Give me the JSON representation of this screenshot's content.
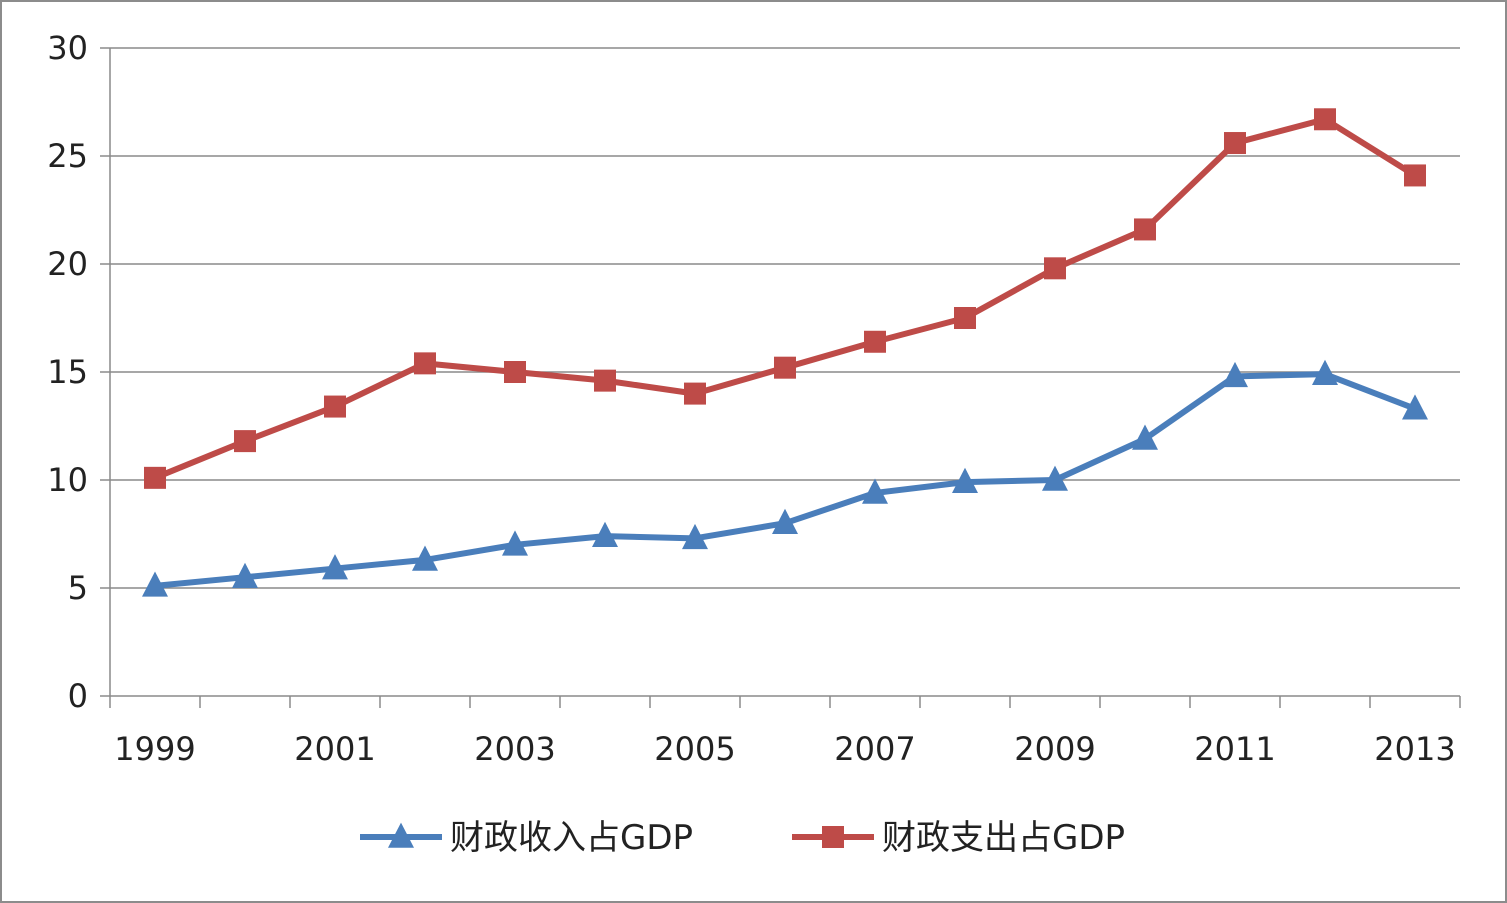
{
  "chart_data": {
    "type": "line",
    "title": "",
    "xlabel": "",
    "ylabel": "",
    "x": [
      1999,
      2000,
      2001,
      2002,
      2003,
      2004,
      2005,
      2006,
      2007,
      2008,
      2009,
      2010,
      2011,
      2012,
      2013
    ],
    "x_tick_labels": [
      "1999",
      "2001",
      "2003",
      "2005",
      "2007",
      "2009",
      "2011",
      "2013"
    ],
    "ylim": [
      0,
      30
    ],
    "y_ticks": [
      0,
      5,
      10,
      15,
      20,
      25,
      30
    ],
    "grid": "horizontal",
    "legend_position": "bottom",
    "series": [
      {
        "name": "财政收入占GDP",
        "color": "#4a7ebb",
        "marker": "triangle",
        "values": [
          5.1,
          5.5,
          5.9,
          6.3,
          7.0,
          7.4,
          7.3,
          8.0,
          9.4,
          9.9,
          10.0,
          11.9,
          14.8,
          14.9,
          13.3
        ]
      },
      {
        "name": "财政支出占GDP",
        "color": "#be4b48",
        "marker": "square",
        "values": [
          10.1,
          11.8,
          13.4,
          15.4,
          15.0,
          14.6,
          14.0,
          15.2,
          16.4,
          17.5,
          19.8,
          21.6,
          25.6,
          26.7,
          24.1
        ]
      }
    ]
  }
}
